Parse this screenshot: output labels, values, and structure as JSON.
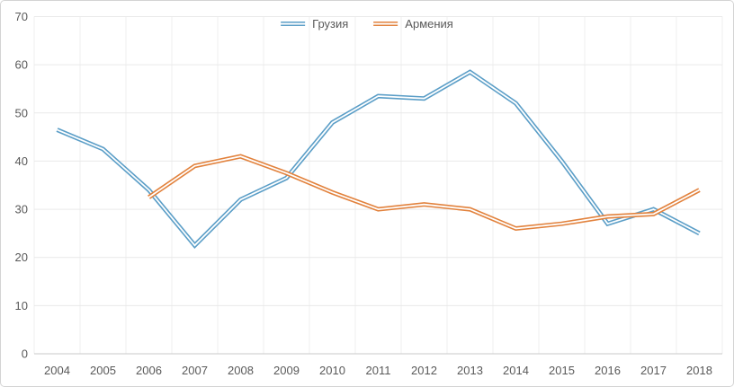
{
  "chart_data": {
    "type": "line",
    "title": "",
    "xlabel": "",
    "ylabel": "",
    "categories": [
      "2004",
      "2005",
      "2006",
      "2007",
      "2008",
      "2009",
      "2010",
      "2011",
      "2012",
      "2013",
      "2014",
      "2015",
      "2016",
      "2017",
      "2018"
    ],
    "series": [
      {
        "name": "Грузия",
        "color": "#5b9ec7",
        "values": [
          46.5,
          42.5,
          34,
          22.5,
          32,
          36.5,
          48,
          53.5,
          53,
          58.5,
          52,
          40,
          27,
          30,
          25
        ]
      },
      {
        "name": "Армения",
        "color": "#e2823d",
        "values": [
          null,
          null,
          32.5,
          39,
          41,
          37.5,
          33.5,
          30,
          31,
          30,
          26,
          27,
          28.5,
          29,
          34
        ]
      }
    ],
    "ylim": [
      0,
      70
    ],
    "y_ticks": [
      "0",
      "10",
      "20",
      "30",
      "40",
      "50",
      "60",
      "70"
    ],
    "grid": true,
    "legend_position": "top",
    "line_style": "double-stroke"
  },
  "style": {
    "background": "#ffffff",
    "border_color": "#d4d4d4",
    "gridline_color": "#e9e9e9",
    "vertical_gridline_color": "#efefef",
    "axis_line_color": "#c9c9c9",
    "axis_text_color": "#595959",
    "line_inner_color": "#ffffff"
  }
}
